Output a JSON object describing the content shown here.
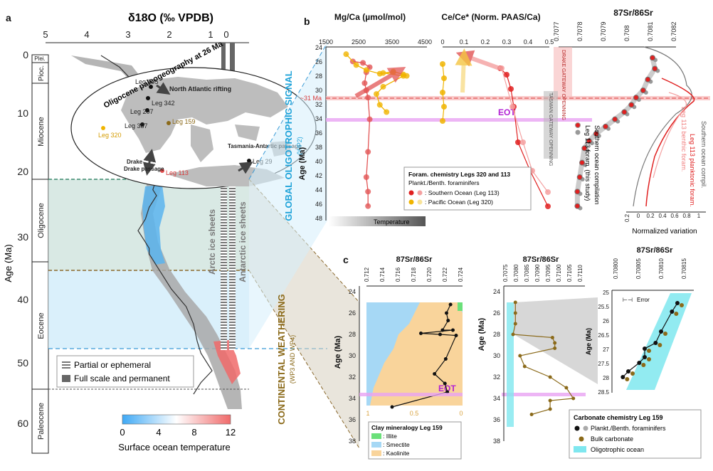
{
  "panels": {
    "a": {
      "letter": "a",
      "x_title": "δ18O (‰ VPDB)",
      "x_ticks": [
        "5",
        "4",
        "3",
        "2",
        "1",
        "0"
      ],
      "y_title": "Age (Ma)",
      "y_ticks": [
        "0",
        "10",
        "20",
        "30",
        "40",
        "50",
        "60"
      ],
      "epochs": [
        "Plei.",
        "Pioc.",
        "Miocene",
        "Oligocene",
        "Eocene",
        "Paleocene"
      ],
      "map_title": "Oligocene paleogeography at 26 Ma",
      "map_labels": {
        "leg105": "Leg 105",
        "leg342": "Leg 342",
        "leg207": "Leg 207",
        "leg387": "Leg 387",
        "leg159": "Leg 159",
        "leg320": "Leg 320",
        "leg113": "Leg 113",
        "leg29": "Leg 29",
        "atlantic": "North Atlantic rifting",
        "drake": "Drake passage",
        "tasman": "Tasmania-Antartic passage"
      },
      "ice": {
        "arctic": "Arctc ice sheets",
        "antarctic": "Antarctic ice sheets"
      },
      "legend": {
        "partial": "Partial or ephemeral",
        "full": "Full scale and permanent"
      },
      "colorbar": {
        "ticks": [
          "0",
          "4",
          "8",
          "12"
        ],
        "label": "Surface ocean temperature",
        "colors": [
          "#3fa9f5",
          "#ffffff",
          "#f06a6a"
        ]
      }
    },
    "b": {
      "letter": "b",
      "mgca": {
        "title": "Mg/Ca (µmol/mol)",
        "ticks": [
          "1500",
          "2500",
          "3500",
          "4500"
        ]
      },
      "cece": {
        "title": "Ce/Ce* (Norm. PAAS/Ca)",
        "ticks": [
          "0",
          "0.1",
          "0.2",
          "0.3",
          "0.4",
          "0.5"
        ]
      },
      "sr": {
        "title": "87Sr/86Sr",
        "ticks": [
          "0.7077",
          "0.7078",
          "0.7079",
          "0.708",
          "0.7081",
          "0.7082"
        ]
      },
      "y_title": "Age (Ma)",
      "y_ticks": [
        "24",
        "26",
        "28",
        "30",
        "32",
        "34",
        "36",
        "38",
        "40",
        "42",
        "44",
        "46",
        "48"
      ],
      "side_title": "GLOBAL OLIGOTROPHIC SIGNAL",
      "side_sub": "(WP2)",
      "ma31": "~31 Ma",
      "eot": "EOT",
      "drake": "DRAKE GATEWAY OPENNING",
      "tasman": "TASMAN GATEWAY OPENNING",
      "temperature": "Temperature",
      "legend": {
        "title": "Foram. chemistry Legs 320 and 113",
        "sub": "Plankt./Benth. foraminifers",
        "southern": ": Southern Ocean (Leg 113)",
        "pacific": ": Pacific Ocean (Leg 320)"
      },
      "sr_legend": {
        "leg113": "Leg 113 foram. (this study)",
        "comp": "Southern ocean compilation"
      },
      "norm": {
        "title": "Normalized variation",
        "ticks": [
          "0.2",
          "0",
          "0.2",
          "0.4",
          "0.6",
          "0.8",
          "1"
        ],
        "benthic": "Leg 113 benthic foram.",
        "plankt": "Leg 113 planktonic foram.",
        "compil": "Southern ocean compil."
      }
    },
    "c": {
      "letter": "c",
      "side_title": "CONTINENTAL WEATHERING",
      "side_sub": "(WP3 AND WP4)",
      "clay": {
        "title": "87Sr/86Sr",
        "ticks": [
          "0.712",
          "0.714",
          "0.716",
          "0.718",
          "0.720",
          "0.722",
          "0.724"
        ],
        "bottom_ticks": [
          "1",
          "0.5",
          "0"
        ],
        "eot": "EOT"
      },
      "y_title": "Age (Ma)",
      "y_ticks": [
        "24",
        "26",
        "28",
        "30",
        "32",
        "34",
        "36",
        "38"
      ],
      "clay_legend": {
        "title": "Clay mineralogy Leg 159",
        "illite": ": Illite",
        "smectite": ": Smectite",
        "kaolinite": ": Kaolinite"
      },
      "mid": {
        "title": "87Sr/86Sr",
        "ticks": [
          "0.7075",
          "0.7080",
          "0.7085",
          "0.7090",
          "0.7095",
          "0.7100",
          "0.7105",
          "0.7110"
        ]
      },
      "zoom": {
        "title": "87Sr/86Sr",
        "ticks": [
          "0.70800",
          "0.70805",
          "0.70810",
          "0.70815"
        ],
        "y_ticks": [
          "25",
          "25.5",
          "26",
          "26.5",
          "27",
          "27.5",
          "28",
          "28.5"
        ],
        "y_title": "Age (Ma)",
        "error": "Error"
      },
      "carb_legend": {
        "title": "Carbonate chemistry Leg 159",
        "fora": "Plankt./Benth. foraminifers",
        "bulk": "Bulk carbonate",
        "oligo": "Oligotrophic ocean"
      }
    }
  },
  "chart_data": [
    {
      "type": "line",
      "name": "panel-a-d18O",
      "x_axis": "δ18O (‰ VPDB)",
      "xlim": [
        5,
        -0.5
      ],
      "ylim": [
        0,
        63
      ],
      "x": [
        3.5,
        3.0,
        2.7,
        2.5,
        2.3,
        2.2,
        2.1,
        2.2,
        2.0,
        1.9,
        2.0,
        2.1,
        2.0,
        2.2,
        2.3,
        2.5,
        2.3,
        2.2,
        2.2,
        2.0,
        1.8,
        1.6,
        1.2,
        1.0,
        0.9,
        0.8,
        0.7,
        0.6,
        0.5,
        0.8,
        1.0
      ],
      "y": [
        0,
        2,
        4,
        7,
        10,
        13,
        14,
        15,
        17,
        19,
        21,
        23,
        24,
        26,
        28,
        30,
        32,
        33,
        34,
        36,
        38,
        40,
        43,
        46,
        49,
        51,
        52,
        53,
        54,
        56,
        58
      ]
    },
    {
      "type": "line",
      "name": "panel-b-mgca",
      "x_axis": "Mg/Ca (µmol/mol)",
      "xlim": [
        1500,
        4500
      ],
      "ylim": [
        48,
        24
      ],
      "series": [
        {
          "x": [
            2300,
            2600,
            2800,
            2700,
            2650,
            2700,
            2750,
            2800,
            2750,
            2700,
            2750,
            2750
          ],
          "y": [
            26,
            26.2,
            26.8,
            27.5,
            29,
            30,
            31,
            34,
            38.5,
            42,
            44,
            46
          ]
        },
        {
          "x": [
            2100,
            2400,
            2700,
            3100,
            3500,
            3800,
            3900
          ],
          "y": [
            25,
            26.5,
            27.2,
            27.7,
            27.4,
            27.8,
            28
          ]
        },
        {
          "x": [
            3500,
            3200,
            3800,
            3200,
            3000,
            3100,
            3300
          ],
          "y": [
            27.5,
            27.6,
            28,
            29.5,
            30.5,
            32,
            33
          ]
        }
      ]
    },
    {
      "type": "scatter",
      "name": "panel-b-sr",
      "x_axis": "87Sr/86Sr",
      "xlim": [
        0.7077,
        0.7082
      ],
      "ylim": [
        48,
        24
      ],
      "x": [
        0.7081,
        0.70811,
        0.70808,
        0.70806,
        0.70803,
        0.70801,
        0.70798,
        0.70794,
        0.7079,
        0.70786,
        0.70783,
        0.70781,
        0.7078,
        0.70779,
        0.70778,
        0.70778
      ],
      "y": [
        25.5,
        27,
        28.5,
        30,
        31,
        32,
        33,
        34,
        35,
        36,
        37,
        38,
        40,
        42,
        44,
        46
      ]
    },
    {
      "type": "line",
      "name": "panel-c-clay",
      "x_axis": "87Sr/86Sr",
      "xlim": [
        0.712,
        0.724
      ],
      "ylim": [
        38,
        24
      ],
      "x": [
        0.7225,
        0.722,
        0.7222,
        0.7215,
        0.7228,
        0.7188,
        0.7212,
        0.7232,
        0.7219,
        0.7205,
        0.7218,
        0.7221,
        0.7152
      ],
      "y": [
        25.2,
        26,
        26.7,
        27.6,
        27.6,
        27.9,
        28.0,
        28.1,
        30.3,
        31.7,
        32.6,
        33.4,
        34.8
      ]
    },
    {
      "type": "line",
      "name": "panel-c-bulk",
      "x_axis": "87Sr/86Sr",
      "xlim": [
        0.7075,
        0.711
      ],
      "ylim": [
        38,
        24
      ],
      "x": [
        0.708,
        0.708,
        0.708,
        0.7079,
        0.7096,
        0.7097,
        0.7097,
        0.7082,
        0.7084,
        0.7095,
        0.7102,
        0.7105,
        0.7095,
        0.7095,
        0.7087
      ],
      "y": [
        25,
        26,
        27,
        28,
        28.3,
        28.8,
        29.3,
        30,
        31,
        32,
        33,
        34,
        34.2,
        35,
        35.5
      ]
    },
    {
      "type": "scatter",
      "name": "panel-c-zoom",
      "x_axis": "87Sr/86Sr",
      "xlim": [
        0.708,
        0.70815
      ],
      "ylim": [
        28.5,
        25
      ],
      "x": [
        0.70812,
        0.70811,
        0.70809,
        0.70808,
        0.70806,
        0.70806,
        0.70805,
        0.70803,
        0.70802
      ],
      "y": [
        25.4,
        25.7,
        26.4,
        26.8,
        27.0,
        27.3,
        27.5,
        27.8,
        28.0
      ]
    }
  ]
}
